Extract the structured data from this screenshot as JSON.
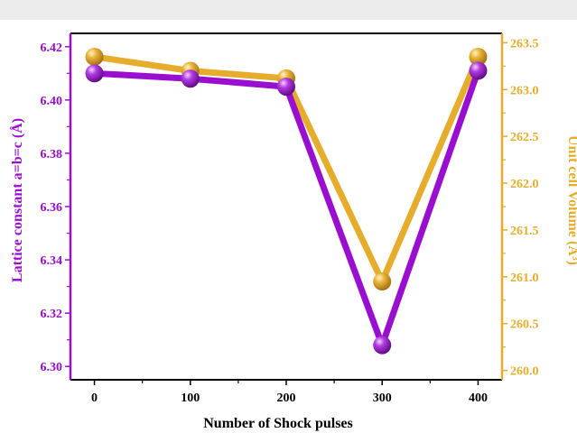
{
  "chart_data": {
    "type": "line",
    "x": [
      0,
      100,
      200,
      300,
      400
    ],
    "xlabel": "Number of Shock pulses",
    "xticks": [
      "0",
      "100",
      "200",
      "300",
      "400"
    ],
    "xlim": [
      -25,
      425
    ],
    "series": [
      {
        "axis": "left",
        "color": "#9a0fcf",
        "values": [
          6.41,
          6.408,
          6.405,
          6.308,
          6.411
        ]
      },
      {
        "axis": "right",
        "color": "#e6ad2c",
        "values": [
          263.35,
          263.2,
          263.12,
          260.95,
          263.35
        ]
      }
    ],
    "y_left": {
      "label": "Lattice constant a=b=c (Å)",
      "color": "#9a0fcf",
      "lim": [
        6.295,
        6.425
      ],
      "ticks": [
        "6.30",
        "6.32",
        "6.34",
        "6.36",
        "6.38",
        "6.40",
        "6.42"
      ]
    },
    "y_right": {
      "label": "Unit cell Volume (Å³)",
      "color": "#e6ad2c",
      "lim": [
        259.9,
        263.6
      ],
      "ticks": [
        "260.0",
        "260.5",
        "261.0",
        "261.5",
        "262.0",
        "262.5",
        "263.0",
        "263.5"
      ]
    },
    "grid": false,
    "legend": "none"
  }
}
